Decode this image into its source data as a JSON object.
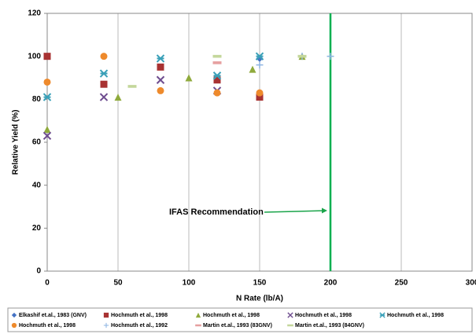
{
  "chart_data": {
    "type": "scatter",
    "x_label": "N Rate (lb/A)",
    "y_label": "Relative Yield (%)",
    "xlim": [
      0,
      300
    ],
    "xticks": [
      0,
      50,
      100,
      150,
      200,
      250,
      300
    ],
    "ylim": [
      0,
      120
    ],
    "yticks": [
      0,
      20,
      40,
      60,
      80,
      100,
      120
    ],
    "grid": "x",
    "reference_line": {
      "x": 200,
      "color": "#00b050"
    },
    "annotation": {
      "text": "IFAS Recommendation",
      "color": "#1aa44a"
    },
    "series": [
      {
        "name": "Elkashif et.al., 1983 (GNV)",
        "color": "#4472c4",
        "marker": "diamond",
        "x": [
          120,
          150
        ],
        "values": [
          90,
          99
        ]
      },
      {
        "name": "Hochmuth  et al., 1998",
        "color": "#a83232",
        "marker": "square",
        "x": [
          0,
          40,
          80,
          120,
          150
        ],
        "values": [
          100,
          87,
          95,
          89,
          81
        ]
      },
      {
        "name": "Hochmuth  et al., 1998",
        "color": "#8faa3c",
        "marker": "triangle",
        "x": [
          0,
          50,
          100,
          145,
          180
        ],
        "values": [
          66,
          81,
          90,
          94,
          100
        ]
      },
      {
        "name": "Hochmuth  et al., 1998",
        "color": "#6e4c8f",
        "marker": "cross",
        "x": [
          0,
          40,
          80,
          120
        ],
        "values": [
          63,
          81,
          89,
          84
        ]
      },
      {
        "name": "Hochmuth  et al., 1998",
        "color": "#3aa0b8",
        "marker": "asterisk",
        "x": [
          0,
          40,
          80,
          120,
          150
        ],
        "values": [
          81,
          92,
          99,
          91,
          100
        ]
      },
      {
        "name": "Hochmuth  et al., 1998",
        "color": "#ee8a2c",
        "marker": "circle",
        "x": [
          0,
          40,
          80,
          120,
          150
        ],
        "values": [
          88,
          100,
          84,
          83,
          83
        ]
      },
      {
        "name": "Hochmuth  et al., 1992",
        "color": "#8db4e2",
        "marker": "plus",
        "x": [
          150,
          180,
          200
        ],
        "values": [
          96,
          100,
          100
        ]
      },
      {
        "name": "Martin et.al., 1993 (83GNV)",
        "color": "#e6a0a0",
        "marker": "dash",
        "x": [
          120
        ],
        "values": [
          97
        ]
      },
      {
        "name": "Martin et.al., 1993 (84GNV)",
        "color": "#c4d79b",
        "marker": "dash",
        "x": [
          60,
          120,
          180
        ],
        "values": [
          86,
          100,
          100
        ]
      }
    ]
  }
}
